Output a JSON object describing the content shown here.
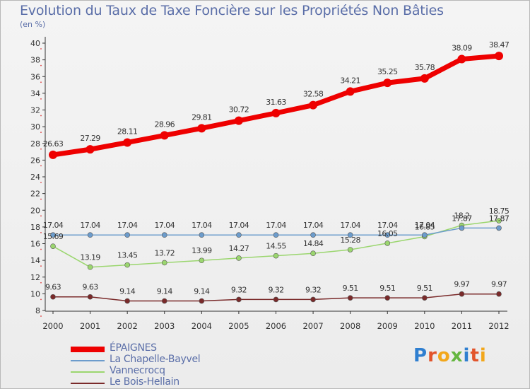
{
  "title": "Evolution du Taux de Taxe Foncière sur les Propriétés Non Bâties",
  "unit_label": "(en %)",
  "logo": {
    "letters": [
      "P",
      "r",
      "o",
      "x",
      "i",
      "t",
      "i"
    ],
    "colors": [
      "#2f7fd0",
      "#e2542b",
      "#f2a71b",
      "#64b640",
      "#2f7fd0",
      "#e2542b",
      "#f2a71b"
    ]
  },
  "chart_data": {
    "type": "line",
    "title": "Evolution du Taux de Taxe Foncière sur les Propriétés Non Bâties",
    "ylabel": "(en %)",
    "xlabel": "",
    "x": [
      "2000",
      "2001",
      "2002",
      "2003",
      "2004",
      "2005",
      "2006",
      "2007",
      "2008",
      "2009",
      "2010",
      "2011",
      "2012"
    ],
    "ylim": [
      8,
      40
    ],
    "yticks": [
      8,
      10,
      12,
      14,
      16,
      18,
      20,
      22,
      24,
      26,
      28,
      30,
      32,
      34,
      36,
      38,
      40
    ],
    "grid": false,
    "legend_position": "bottom-left",
    "series": [
      {
        "name": "ÉPAIGNES",
        "color": "#ee0000",
        "width": 7,
        "values": [
          26.63,
          27.29,
          28.11,
          28.96,
          29.81,
          30.72,
          31.63,
          32.58,
          34.21,
          35.25,
          35.78,
          38.09,
          38.47
        ],
        "labels": [
          "26.63",
          "27.29",
          "28.11",
          "28.96",
          "29.81",
          "30.72",
          "31.63",
          "32.58",
          "34.21",
          "35.25",
          "35.78",
          "38.09",
          "38.47"
        ]
      },
      {
        "name": "La Chapelle-Bayvel",
        "color": "#6c9ccc",
        "width": 1.5,
        "values": [
          17.04,
          17.04,
          17.04,
          17.04,
          17.04,
          17.04,
          17.04,
          17.04,
          17.04,
          17.04,
          17.04,
          17.87,
          17.87
        ],
        "labels": [
          "17.04",
          "17.04",
          "17.04",
          "17.04",
          "17.04",
          "17.04",
          "17.04",
          "17.04",
          "17.04",
          "17.04",
          "17.04",
          "17.87",
          "17.87"
        ]
      },
      {
        "name": "Vannecrocq",
        "color": "#9bd66f",
        "width": 1.5,
        "values": [
          15.69,
          13.19,
          13.45,
          13.72,
          13.99,
          14.27,
          14.55,
          14.84,
          15.28,
          16.05,
          16.85,
          18.2,
          18.75
        ],
        "labels": [
          "15.69",
          "13.19",
          "13.45",
          "13.72",
          "13.99",
          "14.27",
          "14.55",
          "14.84",
          "15.28",
          "16.05",
          "16.85",
          "18.2",
          "18.75"
        ]
      },
      {
        "name": "Le Bois-Hellain",
        "color": "#7a2a2a",
        "width": 1.5,
        "values": [
          9.63,
          9.63,
          9.14,
          9.14,
          9.14,
          9.32,
          9.32,
          9.32,
          9.51,
          9.51,
          9.51,
          9.97,
          9.97
        ],
        "labels": [
          "9.63",
          "9.63",
          "9.14",
          "9.14",
          "9.14",
          "9.32",
          "9.32",
          "9.32",
          "9.51",
          "9.51",
          "9.51",
          "9.97",
          "9.97"
        ]
      }
    ]
  }
}
